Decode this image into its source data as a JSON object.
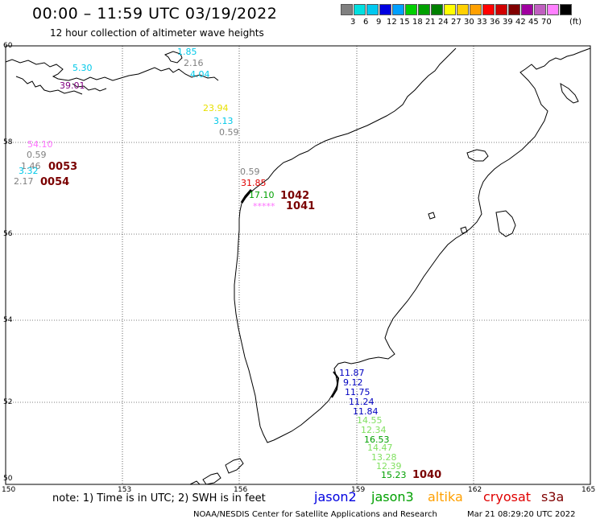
{
  "title": "00:00 – 11:59 UTC 03/19/2022",
  "subtitle": "12 hour collection of altimeter wave heights",
  "legend": {
    "unit": "(ft)",
    "colors": [
      "#808080",
      "#00e0e0",
      "#00c8f0",
      "#0000e0",
      "#00a0ff",
      "#00d000",
      "#00a000",
      "#008000",
      "#ffff00",
      "#ffd000",
      "#ffa000",
      "#ff0000",
      "#d00000",
      "#800000",
      "#a000a0",
      "#c060c0",
      "#ff80ff",
      "#000000"
    ],
    "labels": [
      "3",
      "6",
      "9",
      "12",
      "15",
      "18",
      "21",
      "24",
      "27",
      "30",
      "33",
      "36",
      "39",
      "42",
      "45",
      "70"
    ]
  },
  "axes": {
    "lon_labels": [
      "150",
      "153",
      "156",
      "159",
      "162",
      "165"
    ],
    "lat_labels": [
      "60",
      "58",
      "56",
      "54",
      "52",
      "50"
    ]
  },
  "obs": [
    {
      "text": "5.30",
      "color": "#00c8e8"
    },
    {
      "text": "39.01",
      "color": "#800080"
    },
    {
      "text": "1.85",
      "color": "#00c8e8"
    },
    {
      "text": "2.16",
      "color": "#808080"
    },
    {
      "text": "4.04",
      "color": "#00c8e8"
    },
    {
      "text": "23.94",
      "color": "#e8e000"
    },
    {
      "text": "3.13",
      "color": "#00c8e8"
    },
    {
      "text": "0.59",
      "color": "#808080"
    },
    {
      "text": "54.10",
      "color": "#ff70ff"
    },
    {
      "text": "0.59",
      "color": "#808080"
    },
    {
      "text": "1.46",
      "color": "#808080"
    },
    {
      "text": "3.32",
      "color": "#00c8e8"
    },
    {
      "text": "2.17",
      "color": "#808080"
    },
    {
      "text": "0.59",
      "color": "#808080"
    },
    {
      "text": "31.85",
      "color": "#e00000"
    },
    {
      "text": "17.10",
      "color": "#00a000"
    },
    {
      "text": "*****",
      "color": "#ff70ff"
    },
    {
      "text": "11.87",
      "color": "#0000c0"
    },
    {
      "text": "9.12",
      "color": "#0000c0"
    },
    {
      "text": "11.75",
      "color": "#0000c0"
    },
    {
      "text": "11.24",
      "color": "#0000c0"
    },
    {
      "text": "11.84",
      "color": "#0000c0"
    },
    {
      "text": "14.55",
      "color": "#80e060"
    },
    {
      "text": "12.34",
      "color": "#80e060"
    },
    {
      "text": "16.53",
      "color": "#00a000"
    },
    {
      "text": "14.47",
      "color": "#80e060"
    },
    {
      "text": "13.28",
      "color": "#80e060"
    },
    {
      "text": "12.39",
      "color": "#80e060"
    },
    {
      "text": "15.23",
      "color": "#00a000"
    }
  ],
  "pass_ids": [
    "0053",
    "0054",
    "1042",
    "1041",
    "1040"
  ],
  "note": "note: 1) Time is in UTC; 2) SWH is in feet",
  "satellites": [
    {
      "name": "jason2",
      "color": "#0000e0"
    },
    {
      "name": "jason3",
      "color": "#00a000"
    },
    {
      "name": "altika",
      "color": "#ffa000"
    },
    {
      "name": "cryosat",
      "color": "#e00000"
    },
    {
      "name": "s3a",
      "color": "#800000"
    }
  ],
  "footer_left": "NOAA/NESDIS Center for Satellite Applications and Research",
  "footer_right": "Mar 21 08:29:20 UTC 2022"
}
